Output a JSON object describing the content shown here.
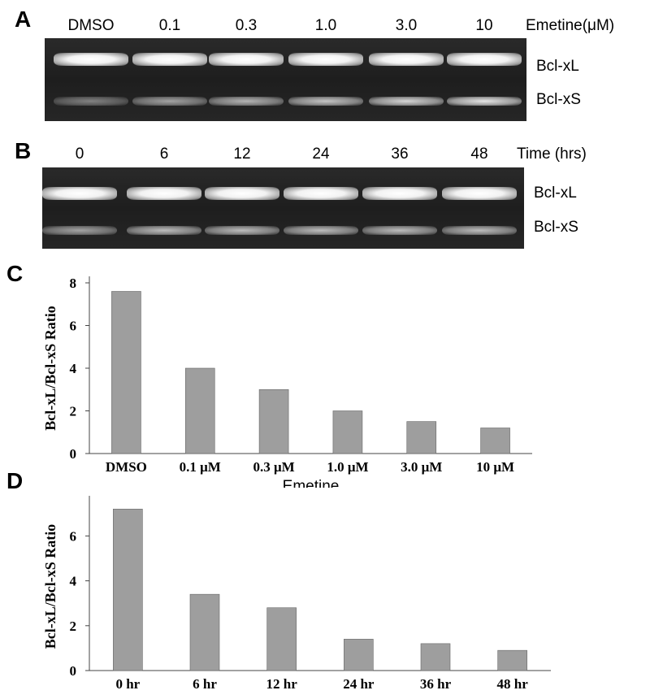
{
  "panels": {
    "a_letter": "A",
    "b_letter": "B",
    "c_letter": "C",
    "d_letter": "D"
  },
  "gel_a": {
    "lanes": [
      "DMSO",
      "0.1",
      "0.3",
      "1.0",
      "3.0",
      "10"
    ],
    "header_title": "Emetine(μM)",
    "band_labels": [
      "Bcl-xL",
      "Bcl-xS"
    ],
    "xS_intensity": [
      0.25,
      0.45,
      0.55,
      0.65,
      0.75,
      0.85
    ]
  },
  "gel_b": {
    "lanes": [
      "0",
      "6",
      "12",
      "24",
      "36",
      "48"
    ],
    "header_title": "Time (hrs)",
    "band_labels": [
      "Bcl-xL",
      "Bcl-xS"
    ],
    "xS_intensity": [
      0.45,
      0.6,
      0.6,
      0.6,
      0.6,
      0.6
    ]
  },
  "chart_data": [
    {
      "type": "bar",
      "panel": "C",
      "categories": [
        "DMSO",
        "0.1 μM",
        "0.3 μM",
        "1.0 μM",
        "3.0 μM",
        "10 μM"
      ],
      "values": [
        7.6,
        4.0,
        3.0,
        2.0,
        1.5,
        1.2
      ],
      "title": "",
      "xlabel": "Emetine",
      "ylabel": "Bcl-xL/Bcl-xS Ratio",
      "ylim": [
        0,
        8
      ],
      "yticks": [
        0,
        2,
        4,
        6,
        8
      ],
      "bar_color": "#9e9e9e",
      "grid": false
    },
    {
      "type": "bar",
      "panel": "D",
      "categories": [
        "0 hr",
        "6 hr",
        "12 hr",
        "24 hr",
        "36 hr",
        "48 hr"
      ],
      "values": [
        7.2,
        3.4,
        2.8,
        1.4,
        1.2,
        0.9
      ],
      "title": "",
      "xlabel": "",
      "ylabel": "Bcl-xL/Bcl-xS Ratio",
      "ylim": [
        0,
        7.5
      ],
      "yticks": [
        0,
        2,
        4,
        6
      ],
      "bar_color": "#9e9e9e",
      "grid": false
    }
  ]
}
